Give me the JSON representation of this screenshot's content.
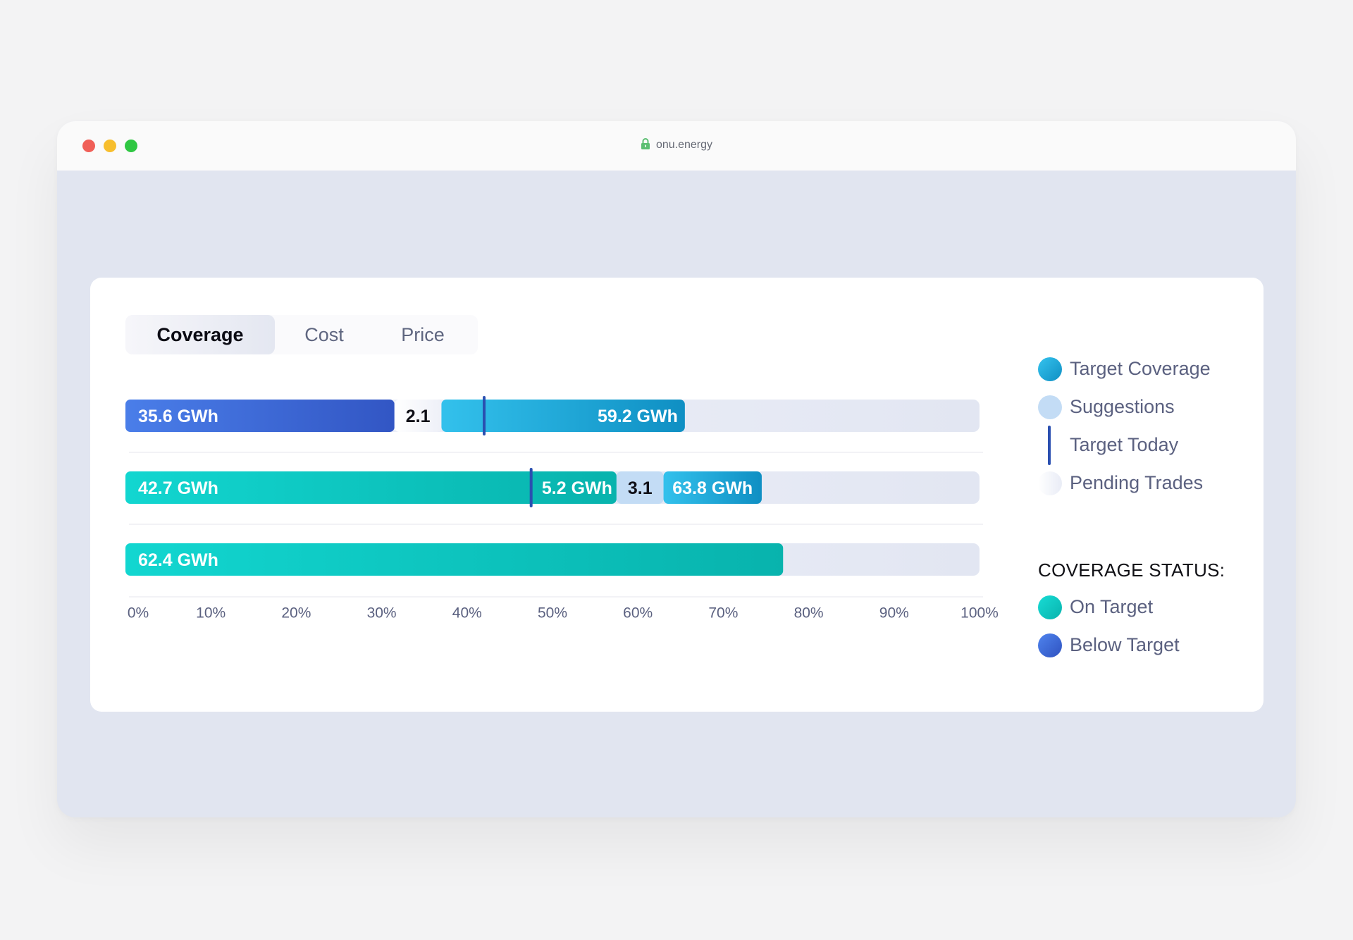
{
  "browser": {
    "url": "onu.energy"
  },
  "tabs": [
    {
      "label": "Coverage",
      "active": true
    },
    {
      "label": "Cost",
      "active": false
    },
    {
      "label": "Price",
      "active": false
    }
  ],
  "legend": {
    "items": [
      {
        "label": "Target Coverage",
        "icon": "target-coverage-swatch"
      },
      {
        "label": "Suggestions",
        "icon": "suggestions-swatch"
      },
      {
        "label": "Target Today",
        "icon": "target-today-line"
      },
      {
        "label": "Pending Trades",
        "icon": "pending-trades-swatch"
      }
    ],
    "status_heading": "COVERAGE STATUS:",
    "status_items": [
      {
        "label": "On Target",
        "color": "#0fc9c2"
      },
      {
        "label": "Below Target",
        "color": "#3a67dc"
      }
    ]
  },
  "colors": {
    "below_target": "#3a67dc",
    "on_target": "#0fc9c2",
    "target_coverage": "#1da5d8",
    "suggestions": "#c3dcf5",
    "target_today": "#2a4fb0",
    "track": "#e6e9f5"
  },
  "chart_data": {
    "type": "bar",
    "orientation": "horizontal",
    "stacked": true,
    "xlim": [
      0,
      100
    ],
    "x_unit": "%",
    "xticks": [
      "0%",
      "10%",
      "20%",
      "30%",
      "40%",
      "50%",
      "60%",
      "70%",
      "80%",
      "90%",
      "100%"
    ],
    "rows": [
      {
        "status": "Below Target",
        "target_today": 42,
        "segments": [
          {
            "kind": "coverage",
            "start": 0,
            "end": 31.5,
            "label": "35.6 GWh"
          },
          {
            "kind": "pending",
            "start": 31.5,
            "end": 37,
            "label": "2.1"
          },
          {
            "kind": "target",
            "start": 37,
            "end": 65.5,
            "label": "59.2 GWh"
          }
        ]
      },
      {
        "status": "On Target",
        "target_today": 47.5,
        "segments": [
          {
            "kind": "coverage",
            "start": 0,
            "end": 57.5,
            "label": "42.7 GWh"
          },
          {
            "kind": "coverage",
            "start": 57.5,
            "end": 57.5,
            "label": "5.2 GWh"
          },
          {
            "kind": "suggestion",
            "start": 57.5,
            "end": 63,
            "label": "3.1"
          },
          {
            "kind": "target",
            "start": 63,
            "end": 74.5,
            "label": "63.8 GWh"
          }
        ]
      },
      {
        "status": "On Target",
        "target_today": null,
        "segments": [
          {
            "kind": "coverage",
            "start": 0,
            "end": 77,
            "label": "62.4 GWh"
          }
        ]
      }
    ]
  }
}
